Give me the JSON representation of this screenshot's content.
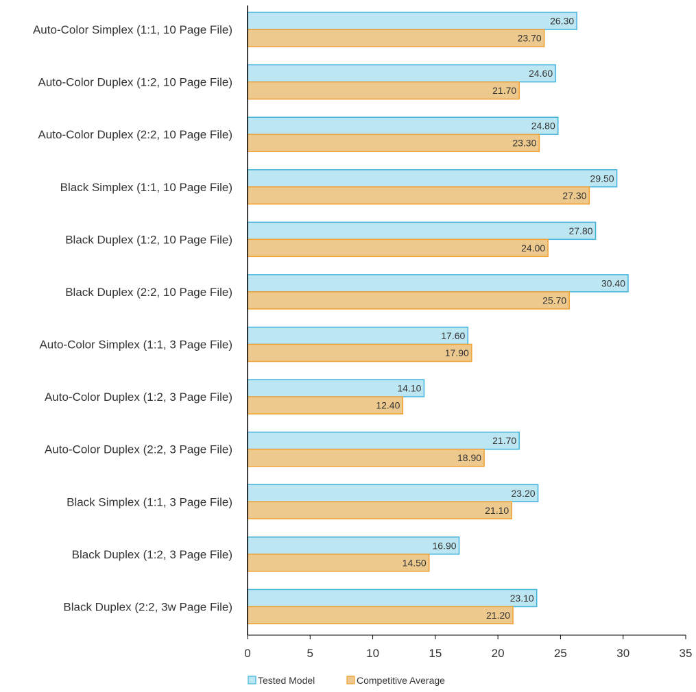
{
  "chart_data": {
    "type": "bar",
    "orientation": "horizontal",
    "categories": [
      "Auto-Color Simplex (1:1, 10 Page File)",
      "Auto-Color Duplex (1:2, 10 Page File)",
      "Auto-Color Duplex (2:2, 10 Page File)",
      "Black Simplex (1:1, 10 Page File)",
      "Black Duplex (1:2, 10 Page File)",
      "Black Duplex (2:2, 10 Page File)",
      "Auto-Color Simplex (1:1, 3 Page File)",
      "Auto-Color Duplex (1:2, 3 Page File)",
      "Auto-Color Duplex (2:2, 3 Page File)",
      "Black Simplex (1:1, 3 Page File)",
      "Black Duplex (1:2, 3 Page File)",
      "Black Duplex (2:2, 3w Page File)"
    ],
    "series": [
      {
        "name": "Tested Model",
        "color": "#bde6f3",
        "stroke": "#42b3dc",
        "values": [
          26.3,
          24.6,
          24.8,
          29.5,
          27.8,
          30.4,
          17.6,
          14.1,
          21.7,
          23.2,
          16.9,
          23.1
        ],
        "labels": [
          "26.30",
          "24.60",
          "24.80",
          "29.50",
          "27.80",
          "30.40",
          "17.60",
          "14.10",
          "21.70",
          "23.20",
          "16.90",
          "23.10"
        ]
      },
      {
        "name": "Competitive Average",
        "color": "#edc98e",
        "stroke": "#f0a030",
        "values": [
          23.7,
          21.7,
          23.3,
          27.3,
          24.0,
          25.7,
          17.9,
          12.4,
          18.9,
          21.1,
          14.5,
          21.2
        ],
        "labels": [
          "23.70",
          "21.70",
          "23.30",
          "27.30",
          "24.00",
          "25.70",
          "17.90",
          "12.40",
          "18.90",
          "21.10",
          "14.50",
          "21.20"
        ]
      }
    ],
    "xlim": [
      0,
      35
    ],
    "xticks": [
      "0",
      "5",
      "10",
      "15",
      "20",
      "25",
      "30",
      "35"
    ],
    "xtick_values": [
      0,
      5,
      10,
      15,
      20,
      25,
      30,
      35
    ],
    "grid": false,
    "legend": "bottom"
  }
}
